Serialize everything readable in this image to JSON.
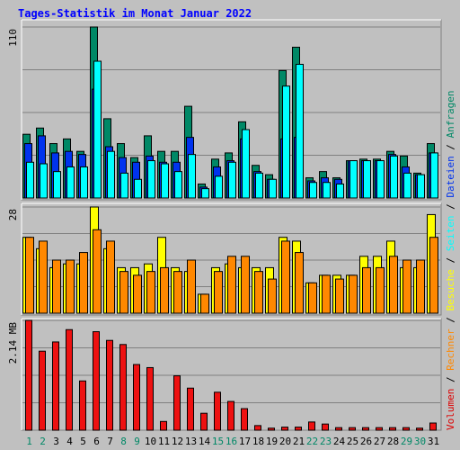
{
  "title": "Tages-Statistik im Monat Januar 2022",
  "right_legend": [
    {
      "text": "Volumen",
      "color": "#dd0000"
    },
    {
      "text": " / ",
      "color": "#000000"
    },
    {
      "text": "Rechner",
      "color": "#ff8800"
    },
    {
      "text": " / ",
      "color": "#000000"
    },
    {
      "text": "Besuche",
      "color": "#ffff00"
    },
    {
      "text": " / ",
      "color": "#000000"
    },
    {
      "text": "Seiten",
      "color": "#00ffff"
    },
    {
      "text": " / ",
      "color": "#000000"
    },
    {
      "text": "Dateien",
      "color": "#0033ee"
    },
    {
      "text": " / ",
      "color": "#000000"
    },
    {
      "text": "Anfragen",
      "color": "#008866"
    }
  ],
  "chart_data": [
    {
      "type": "bar",
      "panel": "top",
      "ymax_label": "110",
      "ylim": [
        0,
        110
      ],
      "categories": [
        "1",
        "2",
        "3",
        "4",
        "5",
        "6",
        "7",
        "8",
        "9",
        "10",
        "11",
        "12",
        "13",
        "14",
        "15",
        "16",
        "17",
        "18",
        "19",
        "20",
        "21",
        "22",
        "23",
        "24",
        "25",
        "26",
        "27",
        "28",
        "29",
        "30",
        "31"
      ],
      "weekend_days": [
        "1",
        "2",
        "8",
        "9",
        "15",
        "16",
        "22",
        "23",
        "29",
        "30"
      ],
      "series": [
        {
          "key": "anfragen",
          "color": "#008866",
          "values": [
            41,
            45,
            35,
            38,
            30,
            110,
            51,
            35,
            26,
            40,
            30,
            30,
            59,
            9,
            25,
            29,
            49,
            21,
            15,
            82,
            97,
            13,
            17,
            13,
            24,
            25,
            25,
            30,
            27,
            16,
            35
          ]
        },
        {
          "key": "dateien",
          "color": "#0033ee",
          "values": [
            35,
            40,
            29,
            30,
            28,
            70,
            33,
            26,
            23,
            27,
            23,
            23,
            39,
            7,
            20,
            24,
            38,
            17,
            12,
            38,
            39,
            11,
            13,
            12,
            24,
            24,
            24,
            28,
            20,
            15,
            29
          ]
        },
        {
          "key": "seiten",
          "color": "#00ffff",
          "values": [
            23,
            22,
            17,
            20,
            20,
            88,
            30,
            16,
            12,
            24,
            22,
            17,
            28,
            6,
            14,
            23,
            44,
            16,
            12,
            72,
            86,
            10,
            10,
            9,
            24,
            24,
            24,
            27,
            16,
            15,
            29
          ]
        }
      ]
    },
    {
      "type": "bar",
      "panel": "middle",
      "ymax_label": "28",
      "ylim": [
        0,
        28
      ],
      "series": [
        {
          "key": "besuche",
          "color": "#ffff00",
          "values": [
            20,
            17,
            12,
            13,
            13,
            28,
            17,
            12,
            12,
            13,
            20,
            12,
            11,
            5,
            12,
            13,
            12,
            12,
            12,
            20,
            19,
            8,
            10,
            10,
            10,
            15,
            15,
            19,
            12,
            12,
            26
          ]
        },
        {
          "key": "rechner",
          "color": "#ff8800",
          "values": [
            20,
            19,
            14,
            14,
            16,
            22,
            19,
            11,
            10,
            11,
            12,
            11,
            14,
            5,
            11,
            15,
            15,
            11,
            9,
            19,
            16,
            8,
            10,
            9,
            10,
            12,
            12,
            15,
            14,
            14,
            20
          ]
        }
      ]
    },
    {
      "type": "bar",
      "panel": "bottom",
      "ymax_label": "2.14 MB",
      "ylim": [
        0,
        2.14
      ],
      "series": [
        {
          "key": "volumen",
          "color": "#ee1111",
          "values": [
            2.14,
            1.54,
            1.72,
            1.96,
            0.96,
            1.92,
            1.75,
            1.67,
            1.28,
            1.22,
            0.17,
            1.06,
            0.82,
            0.33,
            0.74,
            0.56,
            0.42,
            0.09,
            0.04,
            0.06,
            0.06,
            0.16,
            0.12,
            0.05,
            0.05,
            0.05,
            0.05,
            0.05,
            0.05,
            0.04,
            0.14
          ]
        }
      ]
    }
  ]
}
